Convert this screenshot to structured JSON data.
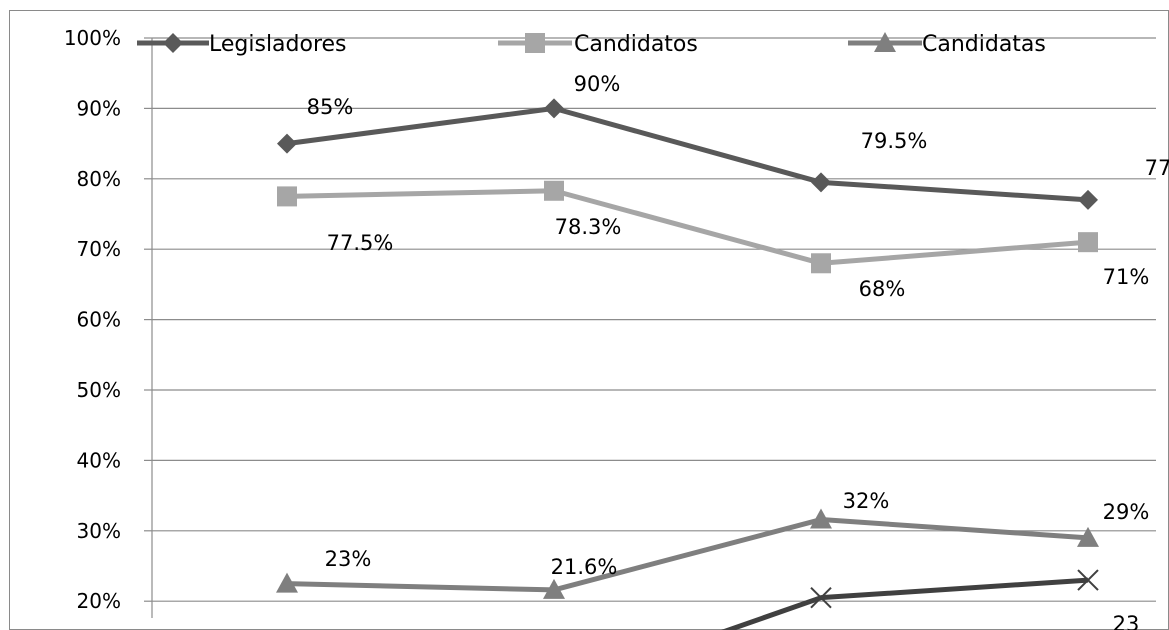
{
  "chart_data": {
    "type": "line",
    "ylim": [
      20,
      100
    ],
    "y_ticks": [
      "20%",
      "30%",
      "40%",
      "50%",
      "60%",
      "70%",
      "80%",
      "90%",
      "100%"
    ],
    "y_tick_values": [
      20,
      30,
      40,
      50,
      60,
      70,
      80,
      90,
      100
    ],
    "grid": true,
    "legend_position": "top",
    "series": [
      {
        "name": "Legisladores",
        "marker": "diamond",
        "color": "#595959",
        "values": [
          85,
          90,
          79.5,
          77
        ],
        "labels": [
          "85%",
          "90%",
          "79.5%",
          "77"
        ]
      },
      {
        "name": "Candidatos",
        "marker": "square",
        "color": "#a6a6a6",
        "values": [
          77.5,
          78.3,
          68,
          71
        ],
        "labels": [
          "77.5%",
          "78.3%",
          "68%",
          "71%"
        ]
      },
      {
        "name": "Candidatas",
        "marker": "triangle",
        "color": "#7f7f7f",
        "values": [
          22.5,
          21.6,
          31.6,
          29
        ],
        "labels": [
          "23%",
          "21.6%",
          "32%",
          "29%"
        ]
      },
      {
        "name": "",
        "marker": "x",
        "color": "#404040",
        "values": [
          null,
          null,
          20.5,
          23
        ],
        "labels": [
          "",
          "",
          "",
          "23"
        ]
      }
    ]
  }
}
